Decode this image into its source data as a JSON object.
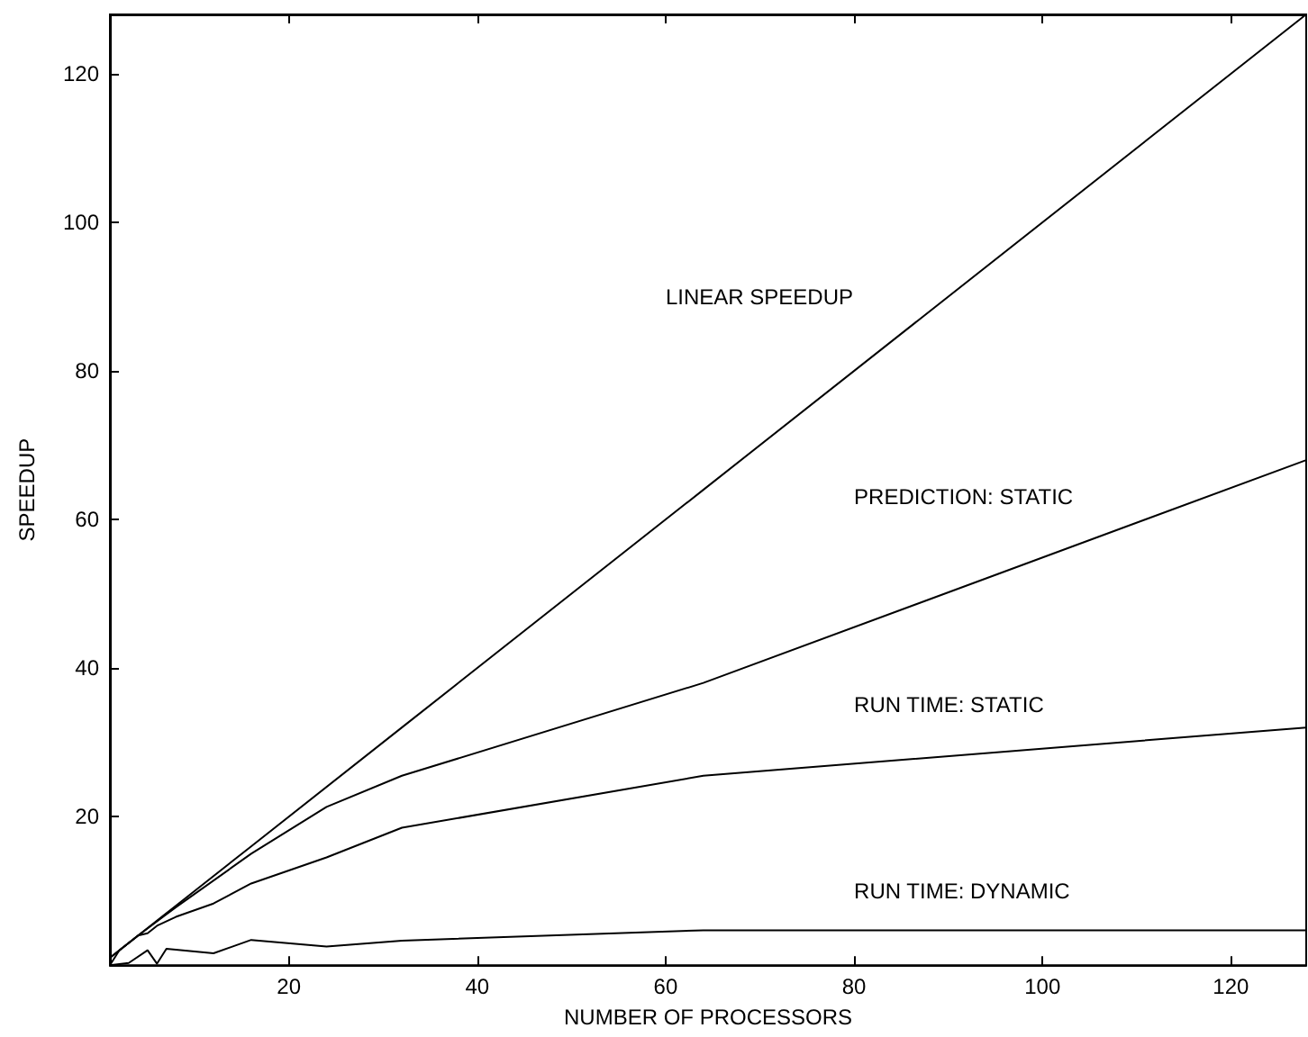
{
  "chart_data": {
    "type": "line",
    "xlabel": "NUMBER OF PROCESSORS",
    "ylabel": "SPEEDUP",
    "xlim": [
      1,
      128
    ],
    "ylim": [
      0,
      128
    ],
    "xticks": [
      20,
      40,
      60,
      80,
      100,
      120
    ],
    "yticks": [
      20,
      40,
      60,
      80,
      100,
      120
    ],
    "grid": false,
    "legend": false,
    "marker": "none",
    "line_style": "solid",
    "series": [
      {
        "name": "LINEAR SPEEDUP",
        "color": "#000000",
        "x": [
          1,
          2,
          4,
          8,
          16,
          32,
          64,
          128
        ],
        "values": [
          1,
          2,
          4,
          8,
          16,
          32,
          64,
          128
        ]
      },
      {
        "name": "PREDICTION: STATIC",
        "color": "#000000",
        "x": [
          1,
          2,
          4,
          8,
          16,
          24,
          32,
          64,
          128
        ],
        "values": [
          1,
          2,
          4,
          7.8,
          15,
          21.3,
          25.5,
          38,
          68
        ]
      },
      {
        "name": "RUN TIME: STATIC",
        "color": "#000000",
        "x": [
          1,
          2,
          4,
          5,
          6,
          8,
          12,
          16,
          24,
          32,
          64,
          128
        ],
        "values": [
          0,
          2,
          4,
          4.3,
          5.3,
          6.5,
          8.3,
          11,
          14.5,
          18.5,
          25.5,
          32
        ]
      },
      {
        "name": "RUN TIME: DYNAMIC",
        "color": "#000000",
        "x": [
          1,
          3,
          5,
          6,
          7,
          12,
          16,
          24,
          32,
          64,
          128
        ],
        "values": [
          0,
          0.3,
          2,
          0.2,
          2.2,
          1.6,
          3.4,
          2.5,
          3.3,
          4.7,
          4.7
        ]
      }
    ]
  }
}
